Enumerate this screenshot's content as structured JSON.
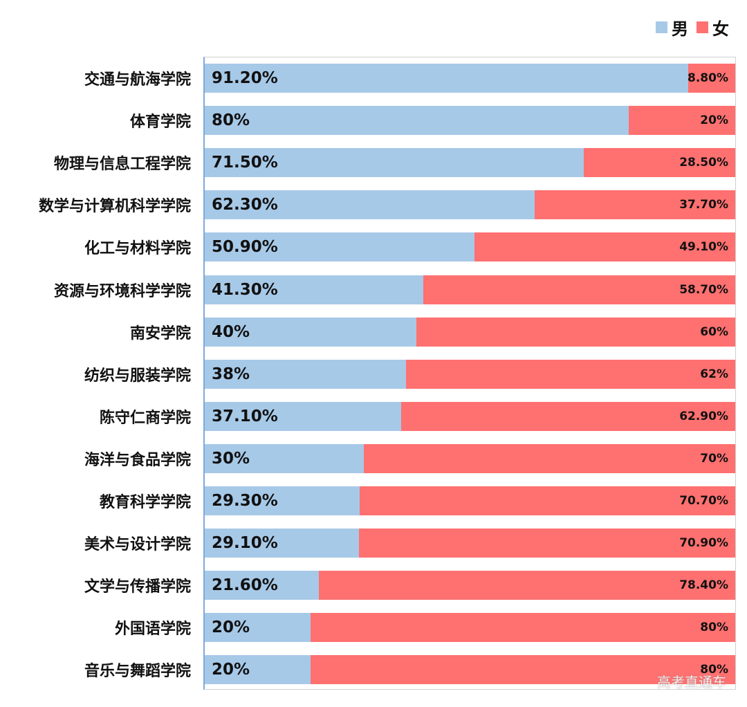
{
  "legend": {
    "male": {
      "label": "男",
      "color": "#a7c9e8"
    },
    "female": {
      "label": "女",
      "color": "#ff7070"
    }
  },
  "watermark": "高考直通车",
  "chart_data": {
    "type": "bar",
    "orientation": "horizontal",
    "stacked": "percent",
    "title": "",
    "xlabel": "",
    "ylabel": "",
    "xlim": [
      0,
      100
    ],
    "grid": false,
    "legend_position": "top-right",
    "categories": [
      "交通与航海学院",
      "体育学院",
      "物理与信息工程学院",
      "数学与计算机科学学院",
      "化工与材料学院",
      "资源与环境科学学院",
      "南安学院",
      "纺织与服装学院",
      "陈守仁商学院",
      "海洋与食品学院",
      "教育科学学院",
      "美术与设计学院",
      "文学与传播学院",
      "外国语学院",
      "音乐与舞蹈学院"
    ],
    "series": [
      {
        "name": "男",
        "color": "#a7c9e8",
        "values": [
          91.2,
          80,
          71.5,
          62.3,
          50.9,
          41.3,
          40,
          38,
          37.1,
          30,
          29.3,
          29.1,
          21.6,
          20,
          20
        ],
        "labels": [
          "91.20%",
          "80%",
          "71.50%",
          "62.30%",
          "50.90%",
          "41.30%",
          "40%",
          "38%",
          "37.10%",
          "30%",
          "29.30%",
          "29.10%",
          "21.60%",
          "20%",
          "20%"
        ]
      },
      {
        "name": "女",
        "color": "#ff7070",
        "values": [
          8.8,
          20,
          28.5,
          37.7,
          49.1,
          58.7,
          60,
          62,
          62.9,
          70,
          70.7,
          70.9,
          78.4,
          80,
          80
        ],
        "labels": [
          "8.80%",
          "20%",
          "28.50%",
          "37.70%",
          "49.10%",
          "58.70%",
          "60%",
          "62%",
          "62.90%",
          "70%",
          "70.70%",
          "70.90%",
          "78.40%",
          "80%",
          "80%"
        ]
      }
    ]
  }
}
